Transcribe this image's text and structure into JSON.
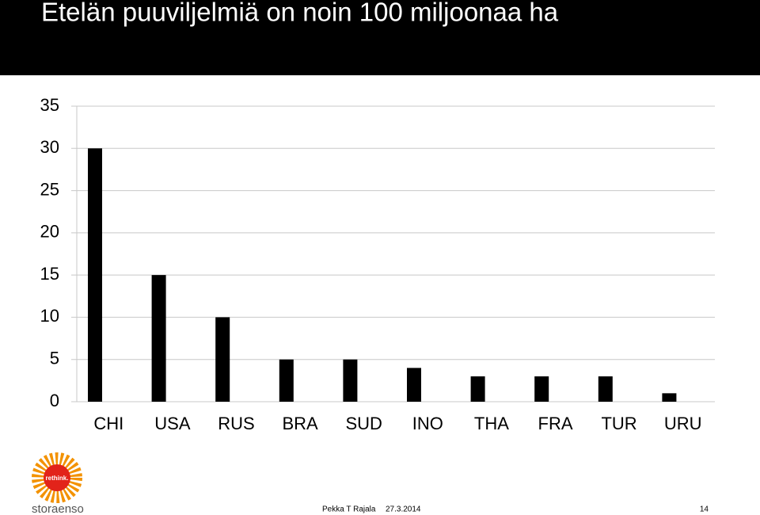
{
  "chart_data": {
    "type": "bar",
    "title": "Etelän puuviljelmiä on noin 100 miljoonaa ha",
    "categories": [
      "CHI",
      "USA",
      "RUS",
      "BRA",
      "SUD",
      "INO",
      "THA",
      "FRA",
      "TUR",
      "URU"
    ],
    "values": [
      30,
      15,
      10,
      5,
      5,
      4,
      3,
      3,
      3,
      1
    ],
    "color": "#000000",
    "ylim": [
      0,
      35
    ],
    "yticks": [
      0,
      5,
      10,
      15,
      20,
      25,
      30,
      35
    ],
    "grid": true
  },
  "logo": {
    "badge": "rethink.",
    "brand": "storaenso"
  },
  "footer": {
    "author": "Pekka T Rajala",
    "date": "27.3.2014",
    "page": "14"
  }
}
